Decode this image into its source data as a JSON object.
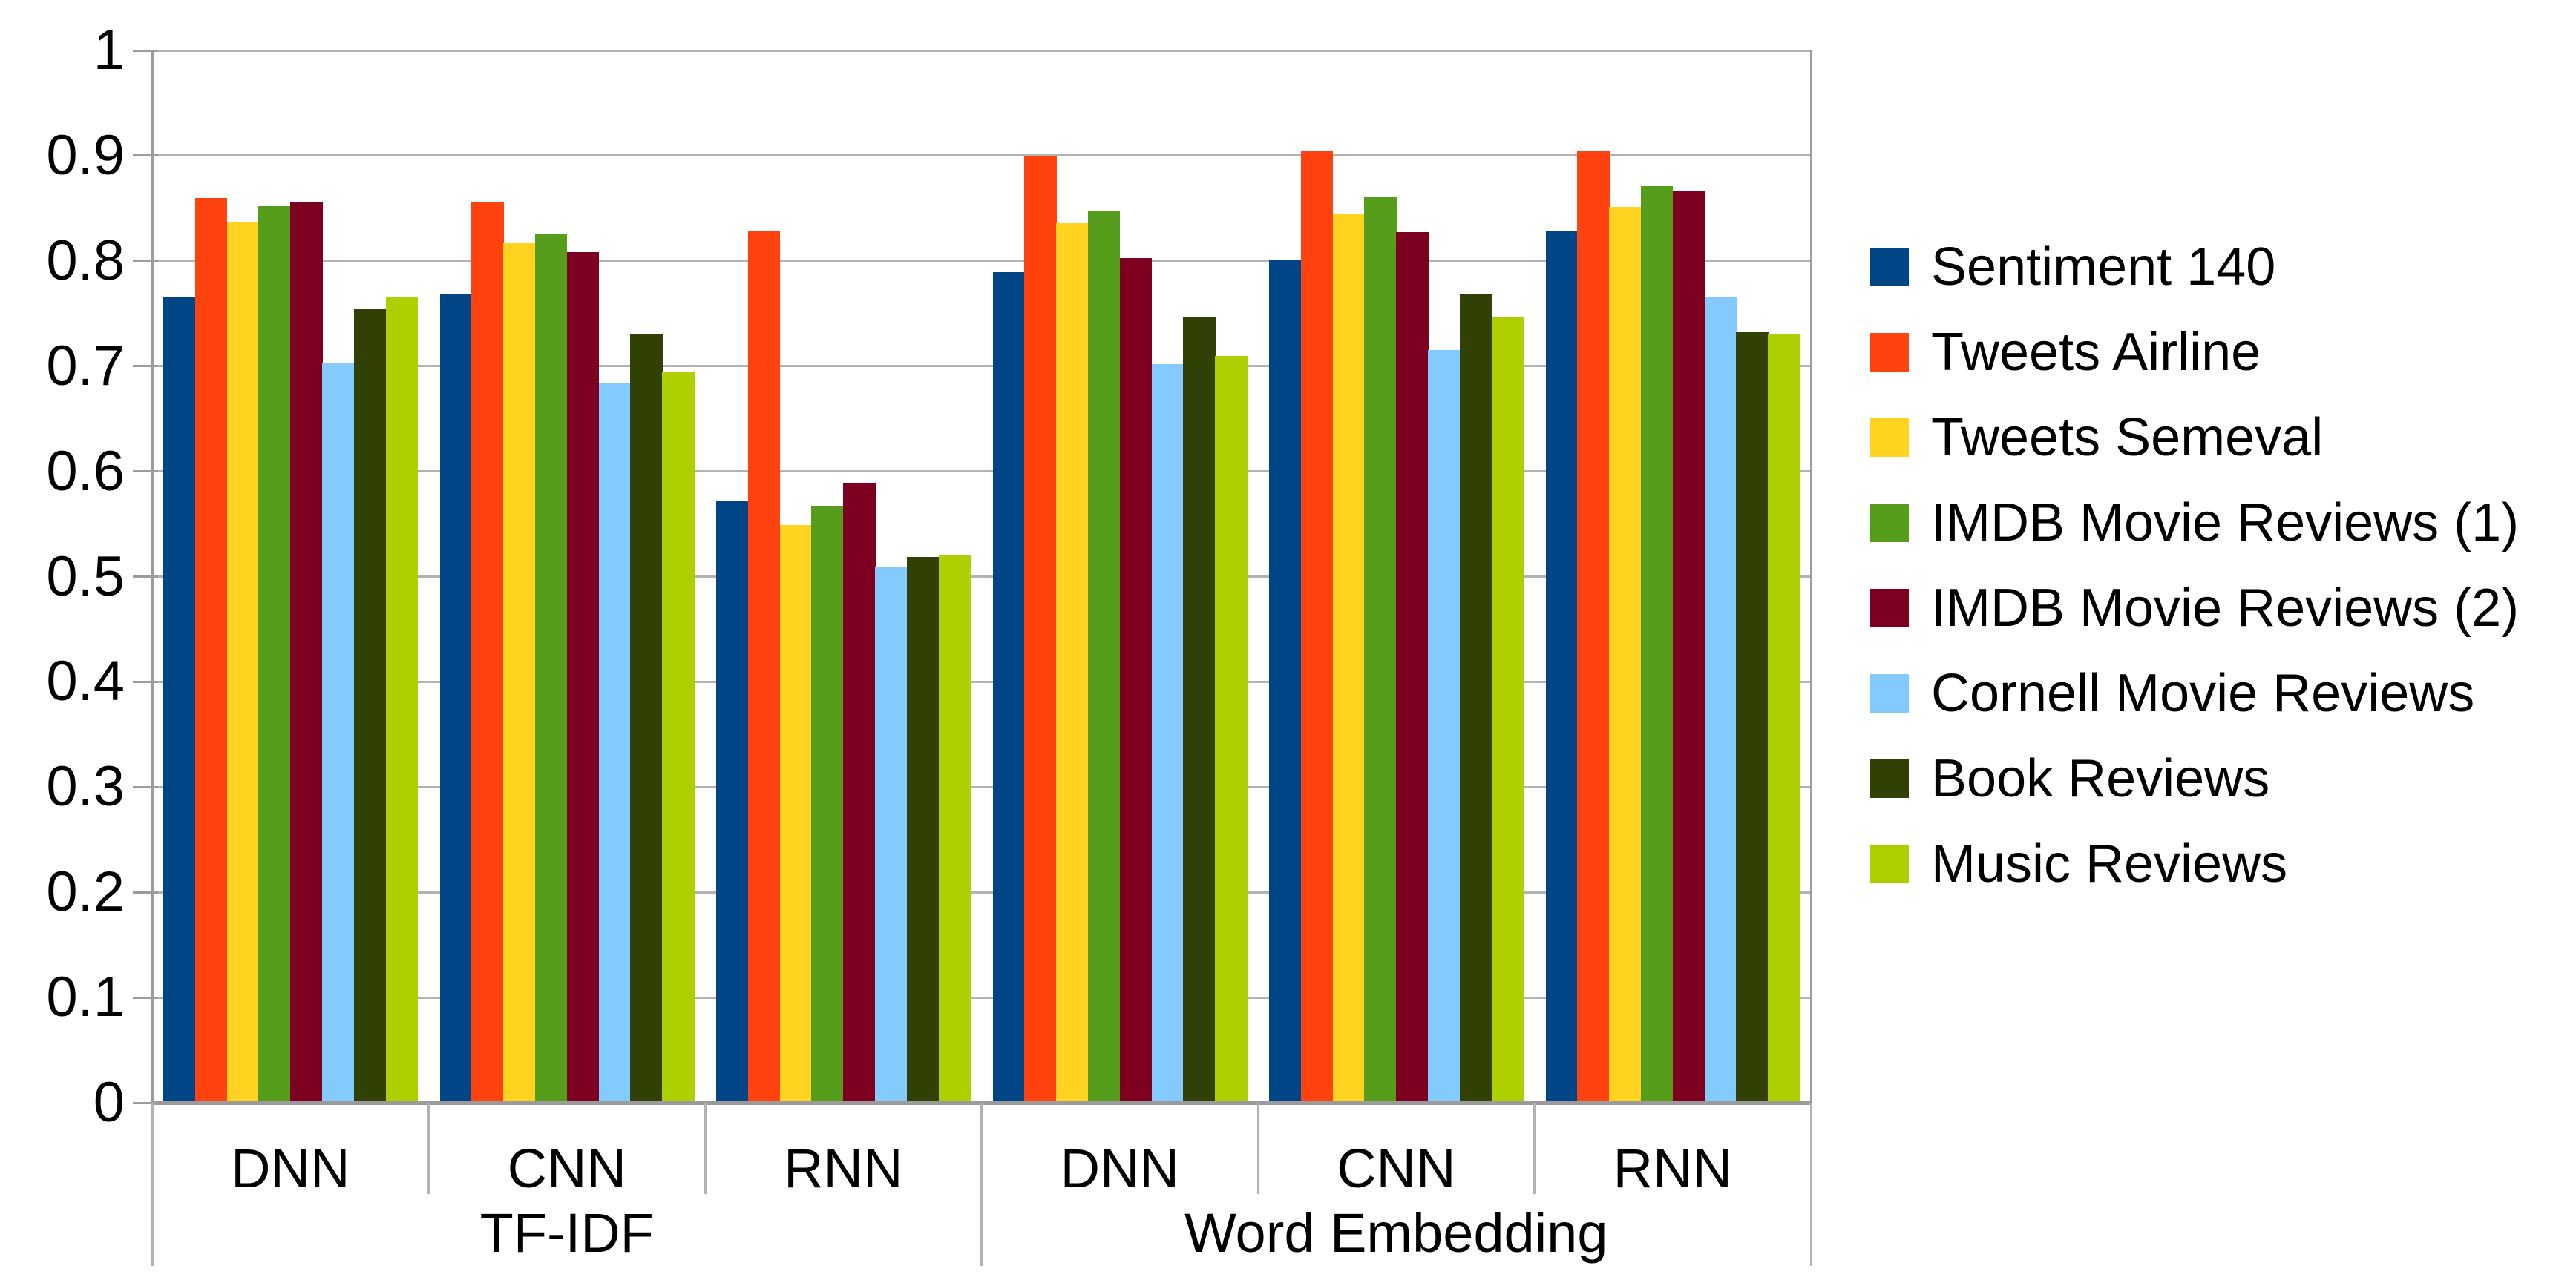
{
  "chart_data": {
    "type": "bar",
    "title": "",
    "grid": true,
    "legend_position": "right",
    "y_axis": {
      "min": 0,
      "max": 1,
      "step": 0.1,
      "tick_labels": [
        "1",
        "0.9",
        "0.8",
        "0.7",
        "0.6",
        "0.5",
        "0.4",
        "0.3",
        "0.2",
        "0.1",
        "0"
      ]
    },
    "x_axis": {
      "group_labels": [
        "DNN",
        "CNN",
        "RNN",
        "DNN",
        "CNN",
        "RNN"
      ],
      "section_labels": [
        {
          "label": "TF-IDF",
          "span_groups": [
            0,
            3
          ]
        },
        {
          "label": "Word Embedding",
          "span_groups": [
            3,
            6
          ]
        }
      ]
    },
    "series": [
      {
        "name": "Sentiment 140",
        "color": "#004586",
        "values": [
          0.765,
          0.769,
          0.572,
          0.789,
          0.801,
          0.828
        ]
      },
      {
        "name": "Tweets Airline",
        "color": "#FF420E",
        "values": [
          0.86,
          0.856,
          0.828,
          0.9,
          0.905,
          0.905
        ]
      },
      {
        "name": "Tweets Semeval",
        "color": "#FFD320",
        "values": [
          0.837,
          0.817,
          0.549,
          0.836,
          0.845,
          0.851
        ]
      },
      {
        "name": "IMDB Movie Reviews (1)",
        "color": "#579D1C",
        "values": [
          0.852,
          0.825,
          0.567,
          0.847,
          0.861,
          0.871
        ]
      },
      {
        "name": "IMDB Movie Reviews (2)",
        "color": "#7E0021",
        "values": [
          0.856,
          0.808,
          0.589,
          0.803,
          0.827,
          0.866
        ]
      },
      {
        "name": "Cornell Movie Reviews",
        "color": "#83CAFF",
        "values": [
          0.703,
          0.684,
          0.509,
          0.702,
          0.715,
          0.766
        ]
      },
      {
        "name": "Book Reviews",
        "color": "#314004",
        "values": [
          0.754,
          0.731,
          0.519,
          0.746,
          0.768,
          0.732
        ]
      },
      {
        "name": "Music Reviews",
        "color": "#AECF00",
        "values": [
          0.766,
          0.695,
          0.52,
          0.71,
          0.747,
          0.731
        ]
      }
    ]
  }
}
